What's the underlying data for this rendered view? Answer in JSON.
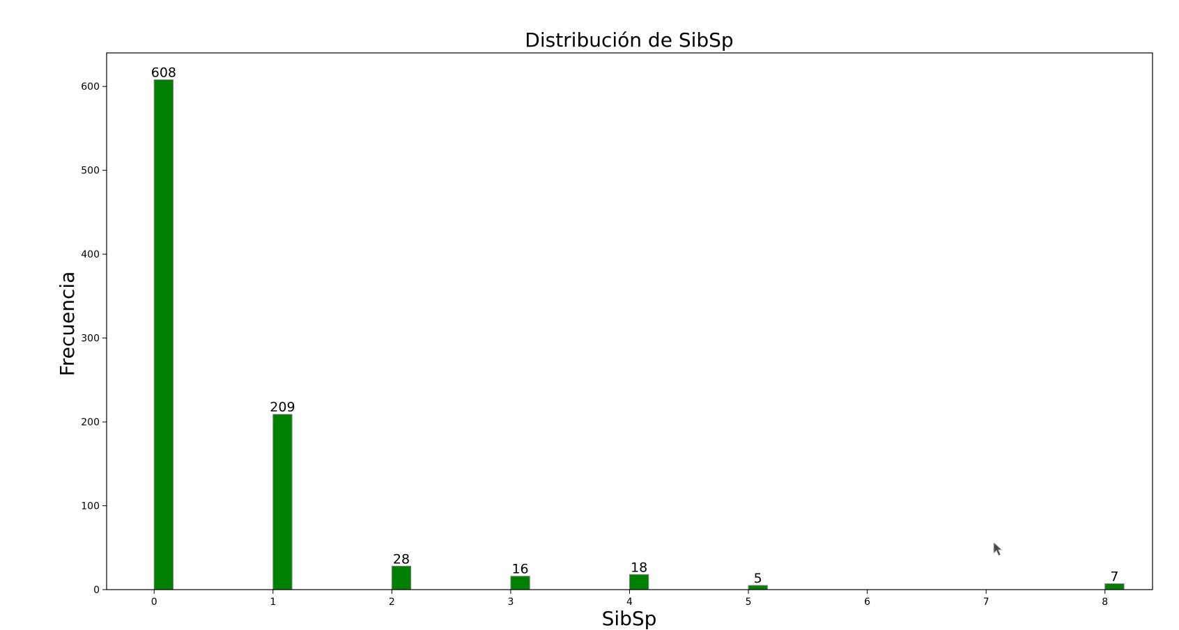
{
  "chart_data": {
    "type": "bar",
    "title": "Distribución de SibSp",
    "xlabel": "SibSp",
    "ylabel": "Frecuencia",
    "x": [
      0,
      1,
      2,
      3,
      4,
      5,
      8
    ],
    "values": [
      608,
      209,
      28,
      16,
      18,
      5,
      7
    ],
    "bar_labels": [
      "608",
      "209",
      "28",
      "16",
      "18",
      "5",
      "7"
    ],
    "xticks": [
      0,
      1,
      2,
      3,
      4,
      5,
      6,
      7,
      8
    ],
    "xtick_labels": [
      "0",
      "1",
      "2",
      "3",
      "4",
      "5",
      "6",
      "7",
      "8"
    ],
    "yticks": [
      0,
      100,
      200,
      300,
      400,
      500,
      600
    ],
    "ytick_labels": [
      "0",
      "100",
      "200",
      "300",
      "400",
      "500",
      "600"
    ],
    "xlim": [
      -0.4,
      8.4
    ],
    "ylim": [
      0,
      640
    ],
    "grid": false,
    "legend": "none",
    "colors": {
      "bar_fill": "#008000",
      "bar_edge": "#7f7f7f",
      "axes": "#000000"
    }
  }
}
